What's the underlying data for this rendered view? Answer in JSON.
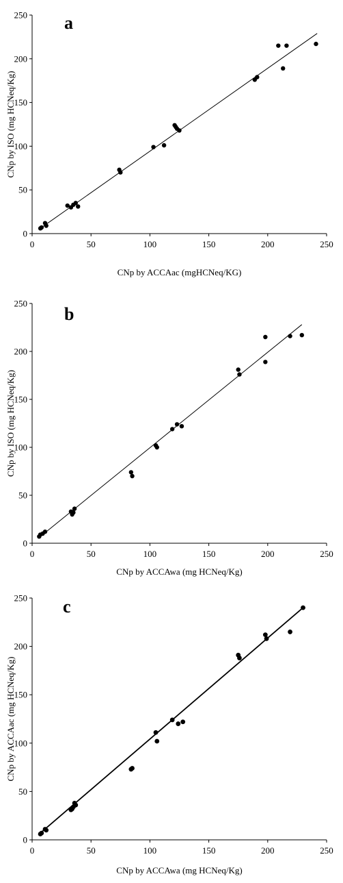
{
  "chart_data": [
    {
      "type": "scatter",
      "panel_label": "a",
      "xlabel": "CNp by ACCAac (mgHCNeq/KG)",
      "ylabel": "CNp by ISO (mg HCNeq/Kg)",
      "xlim": [
        0,
        250
      ],
      "ylim": [
        0,
        250
      ],
      "xticks": [
        "0",
        "50",
        "100",
        "150",
        "200",
        "250"
      ],
      "yticks": [
        "0",
        "50",
        "100",
        "150",
        "200",
        "250"
      ],
      "grid": false,
      "trendline": {
        "x": [
          7,
          242
        ],
        "y": [
          6,
          229
        ]
      },
      "points": [
        [
          7,
          6
        ],
        [
          8,
          7
        ],
        [
          11,
          12
        ],
        [
          12,
          9
        ],
        [
          30,
          32
        ],
        [
          33,
          30
        ],
        [
          35,
          33
        ],
        [
          37,
          35
        ],
        [
          39,
          31
        ],
        [
          74,
          73
        ],
        [
          75,
          70
        ],
        [
          103,
          99
        ],
        [
          112,
          101
        ],
        [
          121,
          124
        ],
        [
          122,
          122
        ],
        [
          123,
          120
        ],
        [
          125,
          118
        ],
        [
          189,
          176
        ],
        [
          191,
          179
        ],
        [
          209,
          215
        ],
        [
          213,
          189
        ],
        [
          216,
          215
        ],
        [
          241,
          217
        ]
      ]
    },
    {
      "type": "scatter",
      "panel_label": "b",
      "xlabel": "CNp by ACCAwa (mg HCNeq/Kg)",
      "ylabel": "CNp by ISO (mg HCNeq/Kg)",
      "xlim": [
        0,
        250
      ],
      "ylim": [
        0,
        250
      ],
      "xticks": [
        "0",
        "50",
        "100",
        "150",
        "200",
        "250"
      ],
      "yticks": [
        "0",
        "50",
        "100",
        "150",
        "200",
        "250"
      ],
      "grid": false,
      "trendline": {
        "x": [
          5,
          229
        ],
        "y": [
          5,
          228
        ]
      },
      "points": [
        [
          6,
          7
        ],
        [
          7,
          9
        ],
        [
          9,
          10
        ],
        [
          11,
          12
        ],
        [
          33,
          33
        ],
        [
          34,
          30
        ],
        [
          35,
          32
        ],
        [
          36,
          36
        ],
        [
          84,
          74
        ],
        [
          85,
          70
        ],
        [
          105,
          102
        ],
        [
          106,
          100
        ],
        [
          119,
          119
        ],
        [
          123,
          124
        ],
        [
          127,
          122
        ],
        [
          175,
          181
        ],
        [
          176,
          176
        ],
        [
          198,
          215
        ],
        [
          198,
          189
        ],
        [
          219,
          216
        ],
        [
          229,
          217
        ]
      ]
    },
    {
      "type": "scatter",
      "panel_label": "c",
      "xlabel": "CNp by ACCAwa (mg HCNeq/Kg)",
      "ylabel": "CNp by ACCAac (mg HCNeq/Kg)",
      "xlim": [
        0,
        250
      ],
      "ylim": [
        0,
        250
      ],
      "xticks": [
        "0",
        "50",
        "100",
        "150",
        "200",
        "250"
      ],
      "yticks": [
        "0",
        "50",
        "100",
        "150",
        "200",
        "250"
      ],
      "grid": false,
      "trendline": {
        "x": [
          6,
          230
        ],
        "y": [
          6,
          240
        ]
      },
      "points": [
        [
          7,
          6
        ],
        [
          8,
          7
        ],
        [
          11,
          11
        ],
        [
          12,
          10
        ],
        [
          33,
          31
        ],
        [
          34,
          32
        ],
        [
          35,
          34
        ],
        [
          36,
          38
        ],
        [
          37,
          36
        ],
        [
          84,
          73
        ],
        [
          85,
          74
        ],
        [
          105,
          111
        ],
        [
          106,
          102
        ],
        [
          119,
          124
        ],
        [
          124,
          120
        ],
        [
          128,
          122
        ],
        [
          175,
          191
        ],
        [
          176,
          188
        ],
        [
          198,
          212
        ],
        [
          199,
          208
        ],
        [
          219,
          215
        ],
        [
          230,
          240
        ]
      ]
    }
  ]
}
